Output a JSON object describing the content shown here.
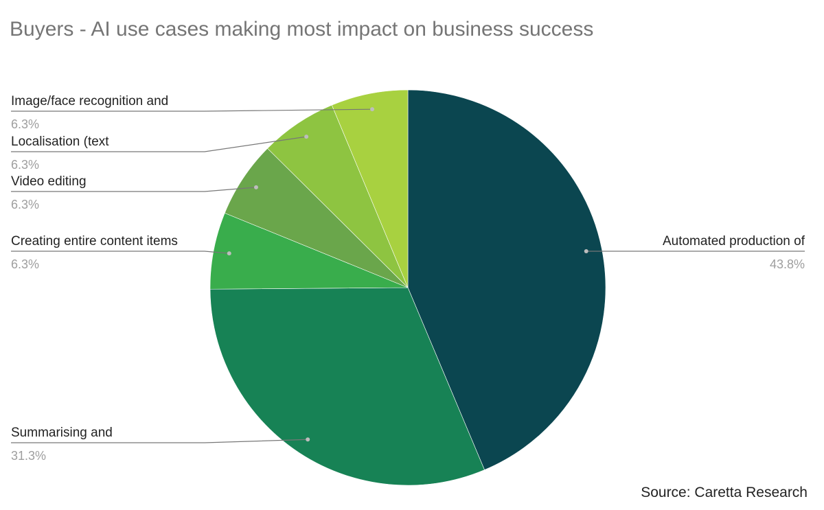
{
  "chart_data": {
    "type": "pie",
    "title": "Buyers - AI use cases making most impact on business success",
    "slices": [
      {
        "label": "Automated production of",
        "value": 43.8,
        "display": "43.8%",
        "color": "#0b4650"
      },
      {
        "label": "Summarising and",
        "value": 31.3,
        "display": "31.3%",
        "color": "#178255"
      },
      {
        "label": "Creating entire content items",
        "value": 6.3,
        "display": "6.3%",
        "color": "#39ad4c"
      },
      {
        "label": "Video editing",
        "value": 6.3,
        "display": "6.3%",
        "color": "#6aa64b"
      },
      {
        "label": "Localisation (text",
        "value": 6.3,
        "display": "6.3%",
        "color": "#8ec441"
      },
      {
        "label": "Image/face recognition and",
        "value": 6.3,
        "display": "6.3%",
        "color": "#a8d140"
      }
    ],
    "legend": "labels beside slices",
    "source": "Source: Caretta Research"
  }
}
